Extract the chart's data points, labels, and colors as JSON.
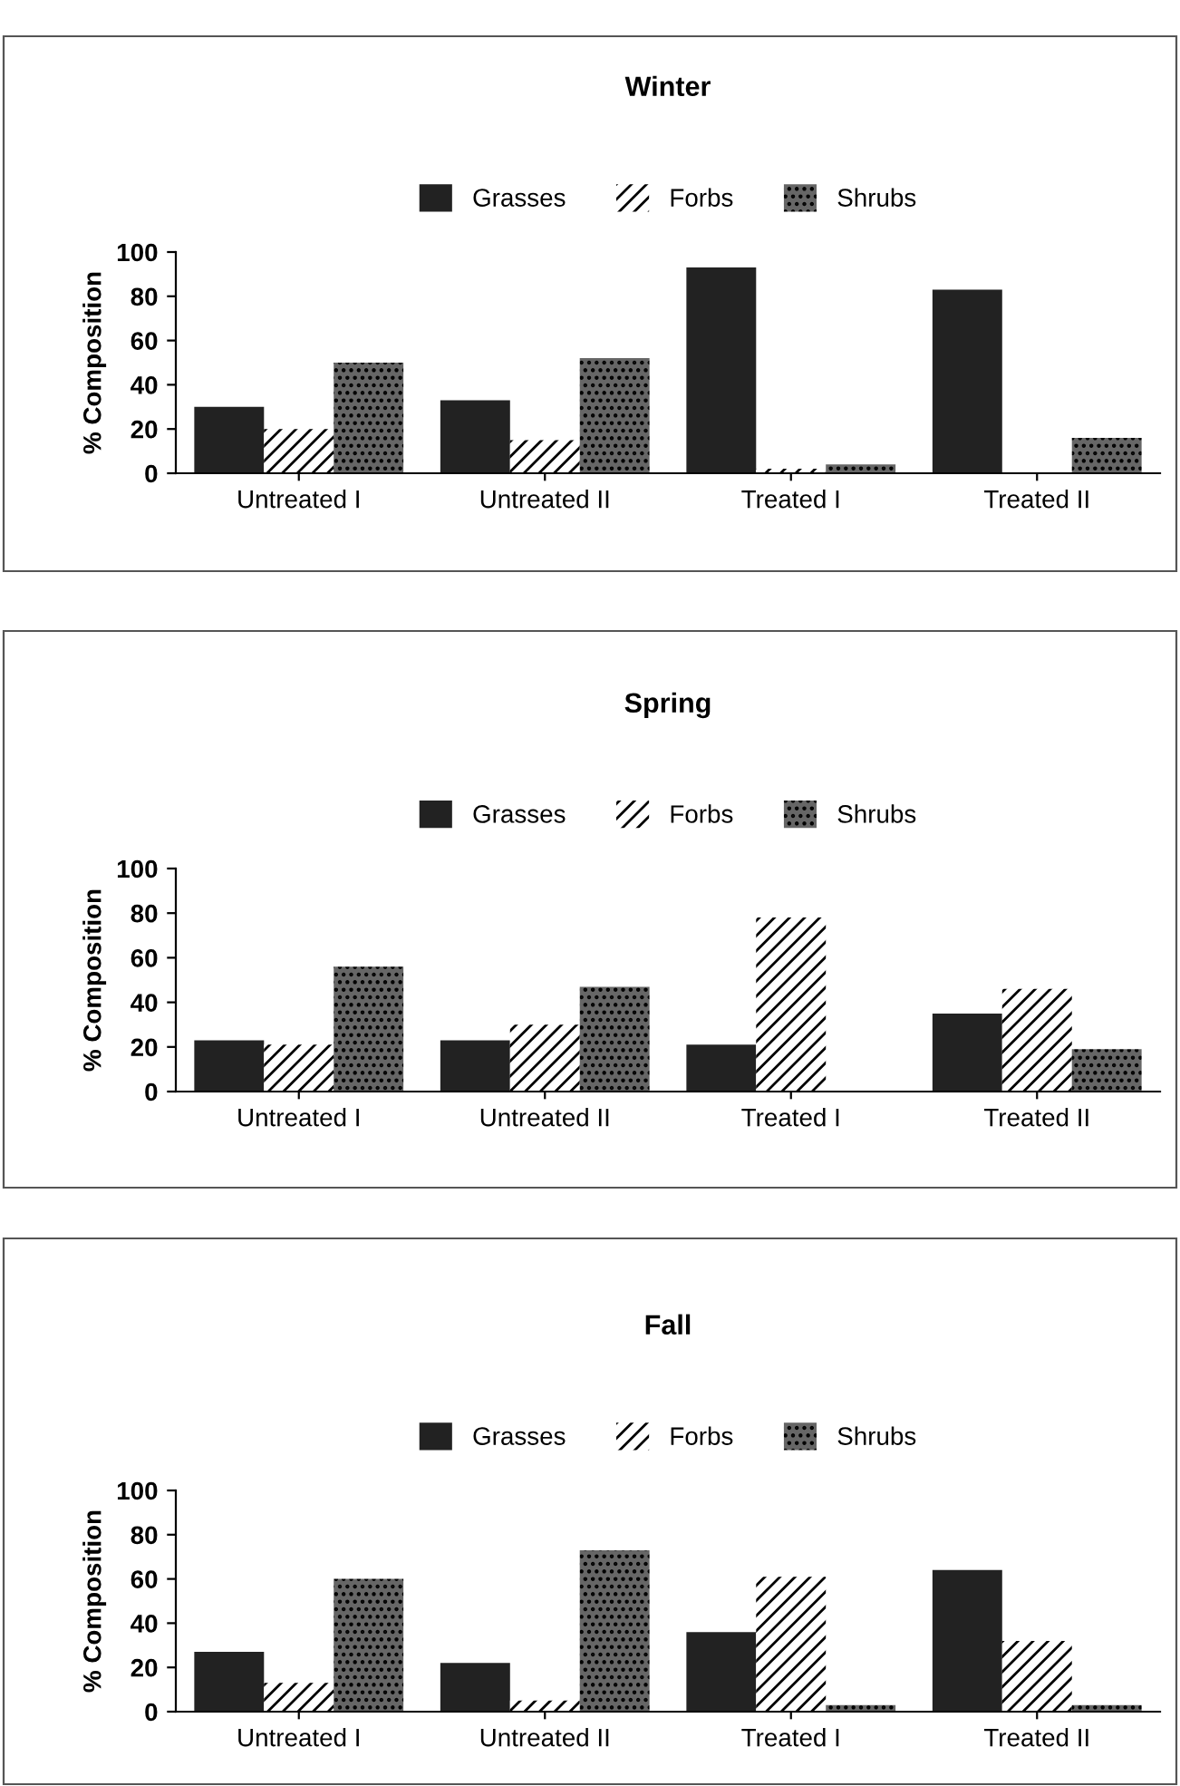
{
  "chart_data": [
    {
      "type": "bar",
      "title": "Winter",
      "ylabel": "% Composition",
      "categories": [
        "Untreated I",
        "Untreated II",
        "Treated I",
        "Treated II"
      ],
      "ylim": [
        0,
        100
      ],
      "yticks": [
        0,
        20,
        40,
        60,
        80,
        100
      ],
      "legend": "top",
      "grid": false,
      "series": [
        {
          "name": "Grasses",
          "color": "#222222",
          "values": [
            30,
            33,
            93,
            83
          ]
        },
        {
          "name": "Forbs",
          "color": "#ffffff",
          "values": [
            20,
            15,
            2,
            0
          ]
        },
        {
          "name": "Shrubs",
          "color": "#666666",
          "values": [
            50,
            52,
            4,
            16
          ]
        }
      ]
    },
    {
      "type": "bar",
      "title": "Spring",
      "ylabel": "% Composition",
      "categories": [
        "Untreated I",
        "Untreated II",
        "Treated I",
        "Treated II"
      ],
      "ylim": [
        0,
        100
      ],
      "yticks": [
        0,
        20,
        40,
        60,
        80,
        100
      ],
      "legend": "top",
      "grid": false,
      "series": [
        {
          "name": "Grasses",
          "color": "#222222",
          "values": [
            23,
            23,
            21,
            35
          ]
        },
        {
          "name": "Forbs",
          "color": "#ffffff",
          "values": [
            21,
            30,
            78,
            46
          ]
        },
        {
          "name": "Shrubs",
          "color": "#666666",
          "values": [
            56,
            47,
            0,
            19
          ]
        }
      ]
    },
    {
      "type": "bar",
      "title": "Fall",
      "ylabel": "% Composition",
      "categories": [
        "Untreated I",
        "Untreated II",
        "Treated I",
        "Treated II"
      ],
      "ylim": [
        0,
        100
      ],
      "yticks": [
        0,
        20,
        40,
        60,
        80,
        100
      ],
      "legend": "top",
      "grid": false,
      "series": [
        {
          "name": "Grasses",
          "color": "#222222",
          "values": [
            27,
            22,
            36,
            64
          ]
        },
        {
          "name": "Forbs",
          "color": "#ffffff",
          "values": [
            13,
            5,
            61,
            32
          ]
        },
        {
          "name": "Shrubs",
          "color": "#666666",
          "values": [
            60,
            73,
            3,
            3
          ]
        }
      ]
    }
  ]
}
